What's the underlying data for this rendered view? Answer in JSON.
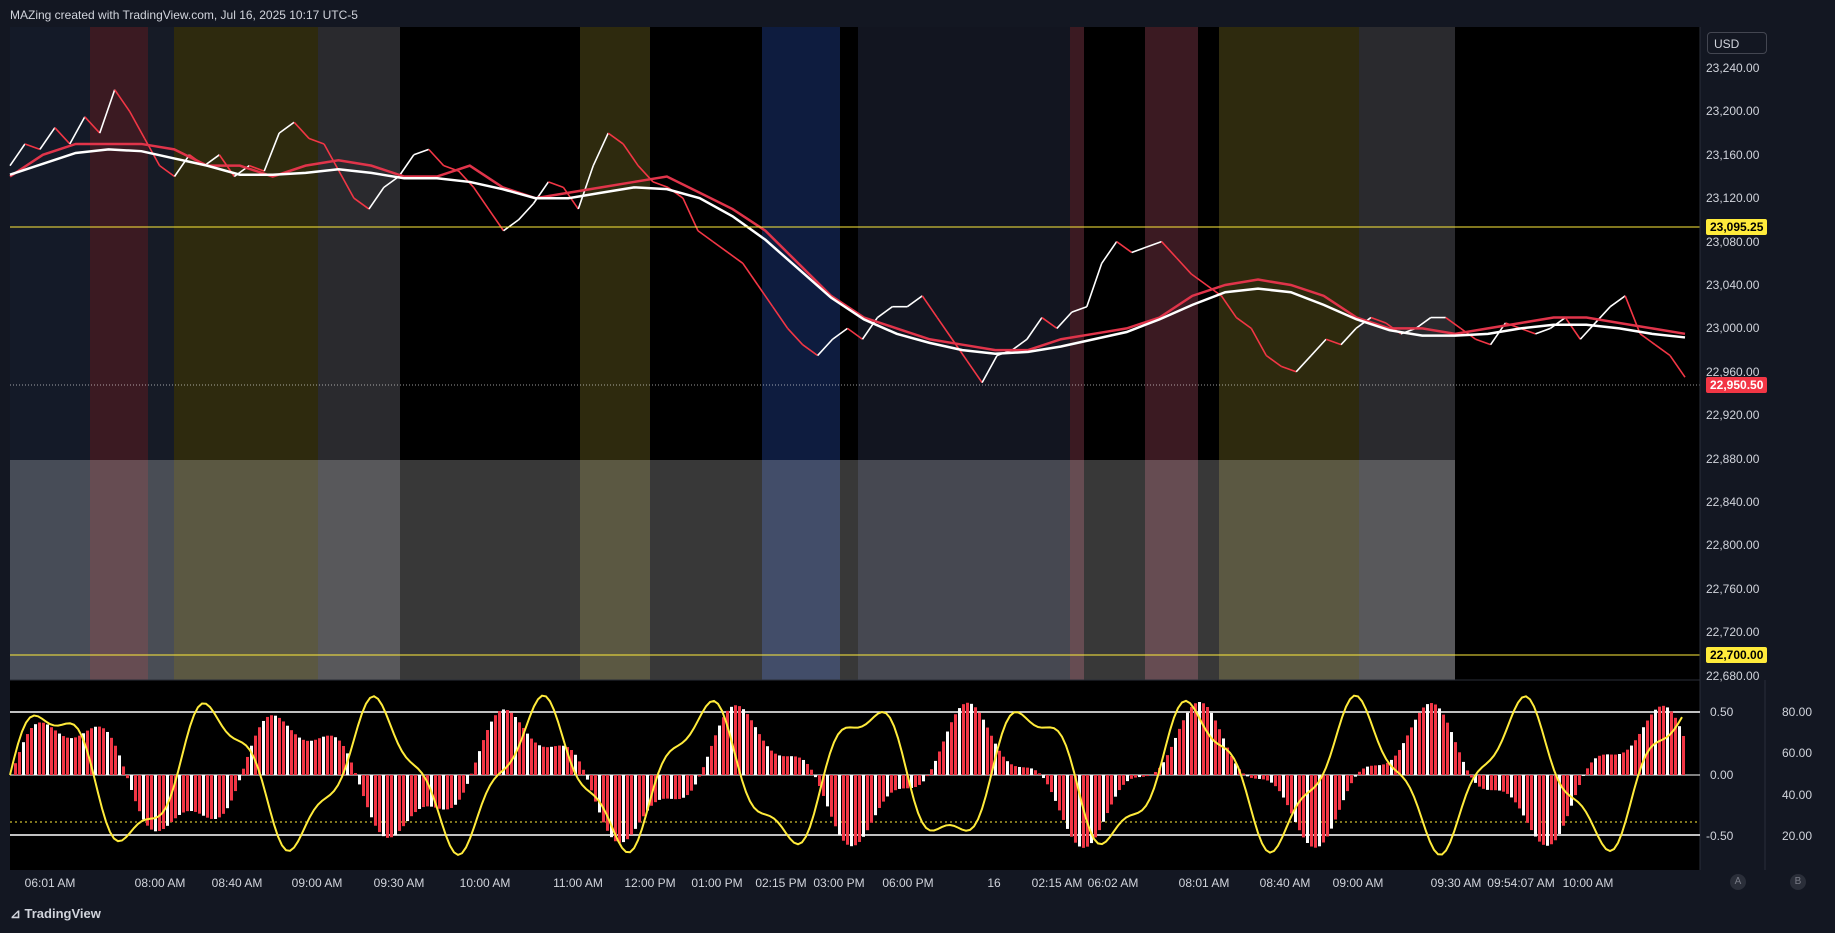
{
  "header": {
    "title": "MAZing created with TradingView.com, Jul 16, 2025 10:17 UTC-5"
  },
  "currency_button": "USD",
  "brand": "TradingView",
  "price_axis": {
    "labels": [
      "23,240.00",
      "23,200.00",
      "23,160.00",
      "23,120.00",
      "23,080.00",
      "23,040.00",
      "23,000.00",
      "22,960.00",
      "22,920.00",
      "22,880.00",
      "22,840.00",
      "22,800.00",
      "22,760.00",
      "22,720.00",
      "22,680.00"
    ],
    "range": [
      22680,
      23240
    ]
  },
  "price_tags": {
    "upper_level": "23,095.25",
    "last_price": "22,950.50",
    "lower_level": "22,700.00"
  },
  "oscillator_axis": {
    "left_labels": [
      "0.50",
      "0.00",
      "-0.50"
    ],
    "right_labels": [
      "80.00",
      "60.00",
      "40.00",
      "20.00"
    ]
  },
  "time_axis": [
    "06:01 AM",
    "08:00 AM",
    "08:40 AM",
    "09:00 AM",
    "09:30 AM",
    "10:00 AM",
    "11:00 AM",
    "12:00 PM",
    "01:00 PM",
    "02:15 PM",
    "03:00 PM",
    "06:00 PM",
    "16",
    "02:15 AM",
    "06:02 AM",
    "08:01 AM",
    "08:40 AM",
    "09:00 AM",
    "09:30 AM",
    "09:54:07 AM",
    "10:00 AM"
  ],
  "pane_buttons": [
    "A",
    "B"
  ],
  "colors": {
    "background": "#000000",
    "panel": "#131722",
    "price_up": "#ffffff",
    "price_down": "#f23645",
    "ma_red": "#e0344a",
    "ma_white": "#ffffff",
    "level_line": "#ffeb3b",
    "oscillator_line": "#ffeb3b"
  },
  "chart_data": {
    "type": "line",
    "title": "",
    "ylabel": "",
    "ylim": [
      22680,
      23240
    ],
    "horizontal_levels": [
      23095.25,
      22700.0
    ],
    "last_price": 22950.5,
    "series": [
      {
        "values": [
          23150,
          23170,
          23165,
          23185,
          23170,
          23195,
          23180,
          23220,
          23200,
          23175,
          23150,
          23140,
          23160,
          23150,
          23160,
          23140,
          23150,
          23145,
          23180,
          23190,
          23175,
          23170,
          23145,
          23120,
          23110,
          23130,
          23140,
          23160,
          23165,
          23150,
          23145,
          23130,
          23110,
          23090,
          23100,
          23115,
          23135,
          23130,
          23110,
          23150,
          23180,
          23170,
          23150,
          23135,
          23130,
          23120,
          23090,
          23080,
          23070,
          23060,
          23040,
          23020,
          23000,
          22985,
          22975,
          22990,
          23000,
          22990,
          23010,
          23020,
          23020,
          23030,
          23010,
          22990,
          22970,
          22950,
          22975,
          22980,
          22990,
          23010,
          23000,
          23015,
          23020,
          23060,
          23080,
          23070,
          23075,
          23080,
          23065,
          23050,
          23040,
          23030,
          23010,
          23000,
          22975,
          22965,
          22960,
          22975,
          22990,
          22985,
          23000,
          23010,
          23005,
          22995,
          23000,
          23010,
          23010,
          23000,
          22990,
          22985,
          23005,
          23000,
          22995,
          23000,
          23010,
          22990,
          23005,
          23020,
          23030,
          22995,
          22985,
          22975,
          22955
        ]
      },
      {
        "values": [
          23140,
          23160,
          23170,
          23170,
          23170,
          23165,
          23150,
          23150,
          23140,
          23150,
          23155,
          23150,
          23140,
          23140,
          23150,
          23130,
          23120,
          23125,
          23130,
          23135,
          23140,
          23125,
          23110,
          23090,
          23060,
          23030,
          23010,
          23000,
          22990,
          22985,
          22980,
          22980,
          22990,
          22995,
          23000,
          23010,
          23030,
          23040,
          23045,
          23040,
          23030,
          23010,
          23000,
          23000,
          22995,
          23000,
          23005,
          23010,
          23010,
          23005,
          23000,
          22995
        ]
      }
    ]
  }
}
